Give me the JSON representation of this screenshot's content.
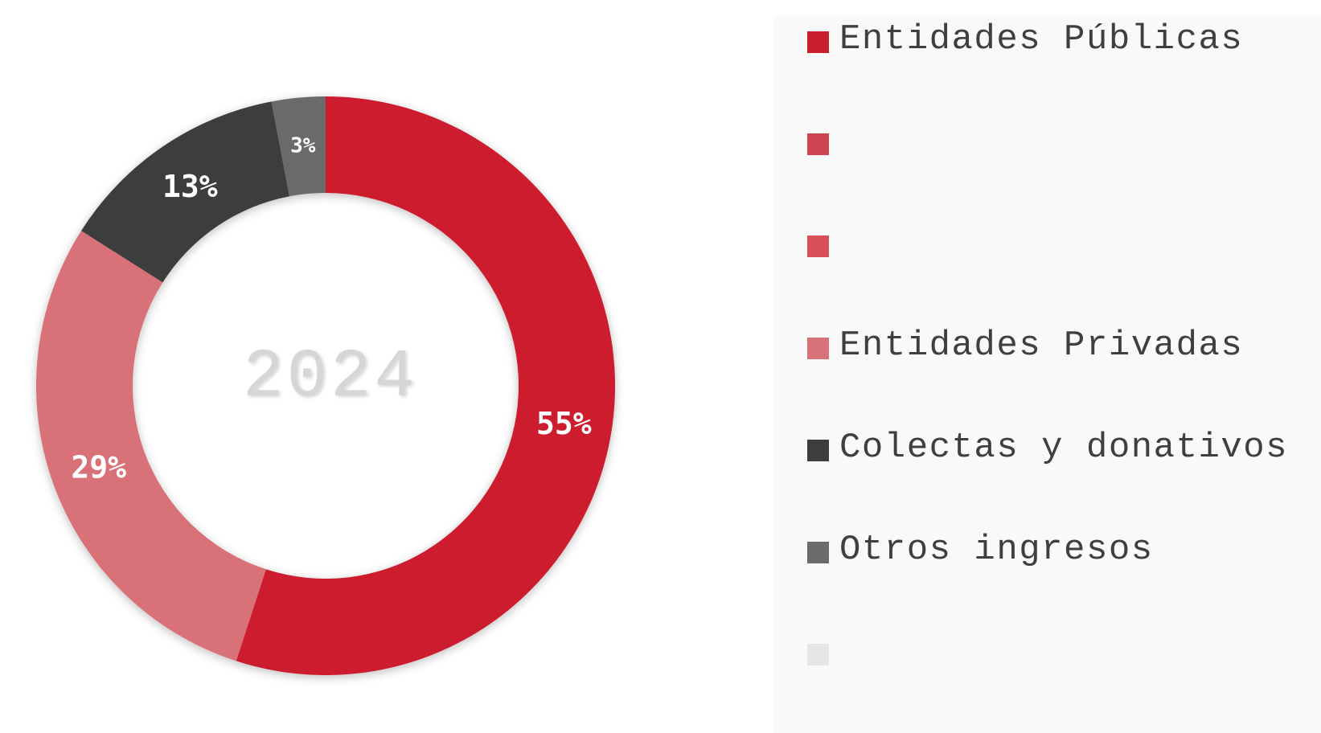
{
  "chart_data": {
    "type": "donut",
    "center_label": "2024",
    "unit": "%",
    "slices": [
      {
        "label": "Entidades Públicas",
        "value": 55,
        "display": "55%",
        "color": "#cc1f2d"
      },
      {
        "label": "Entidades Privadas",
        "value": 29,
        "display": "29%",
        "color": "#d87178"
      },
      {
        "label": "Colectas y donativos",
        "value": 13,
        "display": "13%",
        "color": "#3d3d3d"
      },
      {
        "label": "Otros ingresos",
        "value": 3,
        "display": "3%",
        "color": "#6b6b6b"
      }
    ],
    "slice_order_clockwise_from_top": [
      "Entidades Públicas",
      "Entidades Privadas",
      "Colectas y donativos",
      "Otros ingresos"
    ],
    "legend_position": "right"
  },
  "legend": {
    "items": [
      {
        "label": "Entidades Públicas",
        "color": "#cc1f2d"
      },
      {
        "label": "",
        "color": "#cd4550"
      },
      {
        "label": "",
        "color": "#d9505b"
      },
      {
        "label": "Entidades Privadas",
        "color": "#d87178"
      },
      {
        "label": "Colectas y donativos",
        "color": "#3d3d3d"
      },
      {
        "label": "Otros ingresos",
        "color": "#6b6b6b"
      },
      {
        "label": "",
        "color": "#e6e6e6"
      }
    ]
  }
}
